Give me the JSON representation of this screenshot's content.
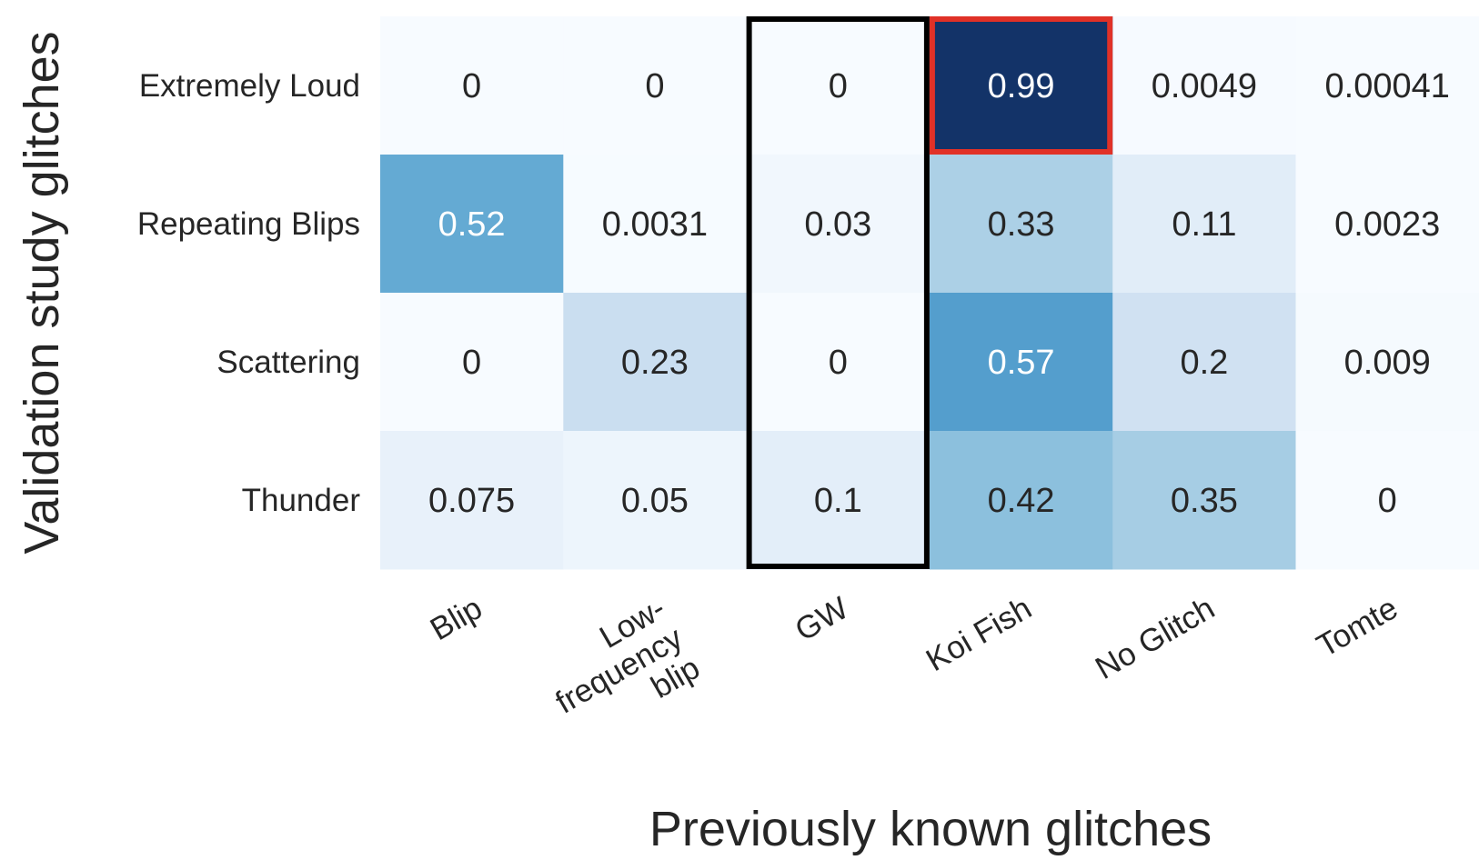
{
  "chart_data": {
    "type": "heatmap",
    "title": "",
    "xlabel": "Previously known glitches",
    "ylabel": "Validation study glitches",
    "rows": [
      "Extremely Loud",
      "Repeating Blips",
      "Scattering",
      "Thunder"
    ],
    "columns": [
      "Blip",
      "Low-frequency blip",
      "GW",
      "Koi Fish",
      "No Glitch",
      "Tomte"
    ],
    "column_label_lines": [
      [
        "Blip"
      ],
      [
        "Low-",
        "frequency",
        "blip"
      ],
      [
        "GW"
      ],
      [
        "Koi Fish"
      ],
      [
        "No Glitch"
      ],
      [
        "Tomte"
      ]
    ],
    "values": [
      [
        0,
        0,
        0,
        0.99,
        0.0049,
        0.00041
      ],
      [
        0.52,
        0.0031,
        0.03,
        0.33,
        0.11,
        0.0023
      ],
      [
        0,
        0.23,
        0,
        0.57,
        0.2,
        0.009
      ],
      [
        0.075,
        0.05,
        0.1,
        0.42,
        0.35,
        0
      ]
    ],
    "value_labels": [
      [
        "0",
        "0",
        "0",
        "0.99",
        "0.0049",
        "0.00041"
      ],
      [
        "0.52",
        "0.0031",
        "0.03",
        "0.33",
        "0.11",
        "0.0023"
      ],
      [
        "0",
        "0.23",
        "0",
        "0.57",
        "0.2",
        "0.009"
      ],
      [
        "0.075",
        "0.05",
        "0.1",
        "0.42",
        "0.35",
        "0"
      ]
    ],
    "colormap": "Blues",
    "vmin": 0,
    "vmax": 1,
    "highlights": [
      {
        "type": "column",
        "column": "GW",
        "color": "#000000"
      },
      {
        "type": "cell",
        "row": "Extremely Loud",
        "column": "Koi Fish",
        "color": "#e03127"
      }
    ]
  }
}
